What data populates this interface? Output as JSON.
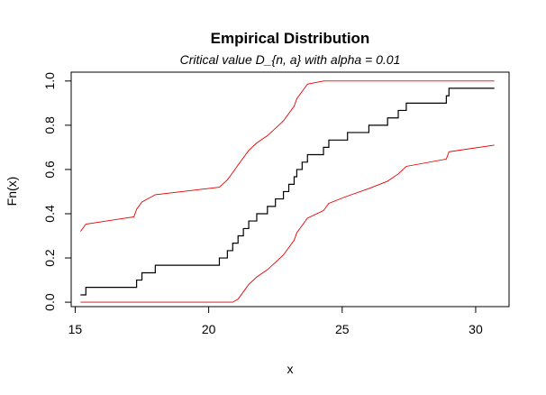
{
  "chart_data": {
    "type": "line",
    "title": "Empirical Distribution",
    "subtitle": "Critical value D_{n, a} with alpha = 0.01",
    "xlabel": "x",
    "ylabel": "Fn(x)",
    "xlim": [
      14.85,
      31.25
    ],
    "ylim": [
      -0.02,
      1.04
    ],
    "x_ticks": [
      15,
      20,
      25,
      30
    ],
    "y_ticks": [
      0.0,
      0.2,
      0.4,
      0.6,
      0.8,
      1.0
    ],
    "series": [
      {
        "role": "ecdf",
        "color": "#000000",
        "step": true,
        "x": [
          15.2,
          15.4,
          17.2,
          17.3,
          17.5,
          18.0,
          20.4,
          20.7,
          20.9,
          21.1,
          21.3,
          21.5,
          21.8,
          22.2,
          22.5,
          22.8,
          23.0,
          23.2,
          23.3,
          23.5,
          23.7,
          24.3,
          24.5,
          25.2,
          26.0,
          26.7,
          27.1,
          27.4,
          28.9,
          29.0,
          30.7
        ],
        "y": [
          0.033,
          0.067,
          0.067,
          0.1,
          0.133,
          0.167,
          0.2,
          0.233,
          0.267,
          0.3,
          0.333,
          0.367,
          0.4,
          0.433,
          0.467,
          0.5,
          0.533,
          0.567,
          0.6,
          0.633,
          0.667,
          0.7,
          0.733,
          0.767,
          0.8,
          0.833,
          0.867,
          0.9,
          0.933,
          0.967,
          0.967
        ]
      },
      {
        "role": "upper-band",
        "color": "#e60000",
        "step": false,
        "x": [
          15.2,
          15.4,
          17.2,
          17.3,
          17.5,
          18.0,
          20.4,
          20.7,
          20.9,
          21.1,
          21.3,
          21.5,
          21.8,
          22.2,
          22.5,
          22.8,
          23.0,
          23.2,
          23.3,
          23.5,
          23.7,
          24.3,
          24.5,
          25.2,
          26.0,
          26.7,
          27.1,
          27.4,
          28.9,
          29.0,
          30.7
        ],
        "y": [
          0.32,
          0.353,
          0.386,
          0.42,
          0.453,
          0.486,
          0.52,
          0.553,
          0.586,
          0.62,
          0.653,
          0.686,
          0.72,
          0.753,
          0.786,
          0.82,
          0.853,
          0.886,
          0.92,
          0.953,
          0.986,
          1.0,
          1.0,
          1.0,
          1.0,
          1.0,
          1.0,
          1.0,
          1.0,
          1.0,
          1.0
        ]
      },
      {
        "role": "lower-band",
        "color": "#e60000",
        "step": false,
        "x": [
          15.2,
          15.4,
          17.2,
          17.3,
          17.5,
          18.0,
          20.4,
          20.7,
          20.9,
          21.1,
          21.3,
          21.5,
          21.8,
          22.2,
          22.5,
          22.8,
          23.0,
          23.2,
          23.3,
          23.5,
          23.7,
          24.3,
          24.5,
          25.2,
          26.0,
          26.7,
          27.1,
          27.4,
          28.9,
          29.0,
          30.7
        ],
        "y": [
          0.0,
          0.0,
          0.0,
          0.0,
          0.0,
          0.0,
          0.0,
          0.0,
          0.0,
          0.014,
          0.047,
          0.08,
          0.114,
          0.147,
          0.18,
          0.214,
          0.247,
          0.28,
          0.314,
          0.347,
          0.38,
          0.414,
          0.447,
          0.48,
          0.514,
          0.547,
          0.58,
          0.614,
          0.647,
          0.68,
          0.71
        ]
      }
    ],
    "grid": false,
    "legend": "none"
  }
}
